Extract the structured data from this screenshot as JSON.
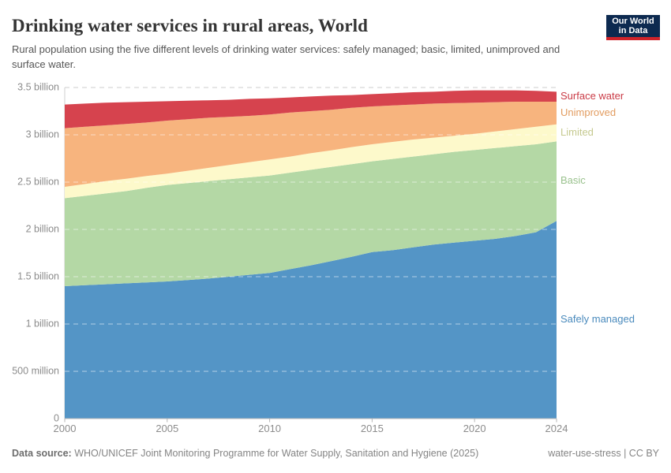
{
  "header": {
    "title": "Drinking water services in rural areas, World",
    "subtitle": "Rural population using the five different levels of drinking water services: safely managed; basic, limited, unimproved and surface water.",
    "logo": {
      "line1": "Our World",
      "line2": "in Data",
      "bg_color": "#0d2a50",
      "bar_color": "#d0232a"
    }
  },
  "chart_data": {
    "type": "area",
    "stacked": true,
    "title": "Drinking water services in rural areas, World",
    "xlabel": "",
    "ylabel": "Rural population",
    "unit": "billion people",
    "grid": "dashed",
    "legend_position": "right",
    "x": [
      2000,
      2001,
      2002,
      2003,
      2004,
      2005,
      2006,
      2007,
      2008,
      2009,
      2010,
      2011,
      2012,
      2013,
      2014,
      2015,
      2016,
      2017,
      2018,
      2019,
      2020,
      2021,
      2022,
      2023,
      2024
    ],
    "series": [
      {
        "name": "Safely managed",
        "color": "#5495c6",
        "label_color": "#4b8bbd",
        "values": [
          1.4,
          1.41,
          1.42,
          1.43,
          1.44,
          1.45,
          1.465,
          1.48,
          1.5,
          1.52,
          1.54,
          1.58,
          1.62,
          1.665,
          1.71,
          1.76,
          1.78,
          1.81,
          1.84,
          1.86,
          1.88,
          1.9,
          1.93,
          1.97,
          2.09
        ]
      },
      {
        "name": "Basic",
        "color": "#b4d8a5",
        "label_color": "#9ac28e",
        "values": [
          0.93,
          0.945,
          0.96,
          0.975,
          1.0,
          1.02,
          1.025,
          1.03,
          1.03,
          1.03,
          1.03,
          1.02,
          1.01,
          0.995,
          0.98,
          0.96,
          0.965,
          0.96,
          0.955,
          0.96,
          0.96,
          0.96,
          0.95,
          0.93,
          0.84
        ]
      },
      {
        "name": "Limited",
        "color": "#fdf9cb",
        "label_color": "#c5c98f",
        "values": [
          0.12,
          0.125,
          0.13,
          0.13,
          0.125,
          0.12,
          0.13,
          0.14,
          0.15,
          0.16,
          0.17,
          0.17,
          0.175,
          0.175,
          0.18,
          0.18,
          0.18,
          0.18,
          0.175,
          0.17,
          0.17,
          0.175,
          0.18,
          0.185,
          0.18
        ]
      },
      {
        "name": "Unimproved",
        "color": "#f7b47e",
        "label_color": "#e29c60",
        "values": [
          0.62,
          0.605,
          0.59,
          0.58,
          0.565,
          0.56,
          0.545,
          0.53,
          0.51,
          0.49,
          0.475,
          0.465,
          0.445,
          0.43,
          0.415,
          0.4,
          0.385,
          0.37,
          0.36,
          0.345,
          0.33,
          0.31,
          0.29,
          0.265,
          0.24
        ]
      },
      {
        "name": "Surface water",
        "color": "#d6434e",
        "label_color": "#ca3b46",
        "values": [
          0.25,
          0.245,
          0.24,
          0.23,
          0.22,
          0.205,
          0.195,
          0.185,
          0.18,
          0.18,
          0.17,
          0.16,
          0.155,
          0.15,
          0.135,
          0.13,
          0.13,
          0.13,
          0.125,
          0.13,
          0.13,
          0.125,
          0.12,
          0.115,
          0.105
        ]
      }
    ],
    "ylim": [
      0,
      3.5
    ],
    "yticks": [
      {
        "v": 0,
        "label": "0"
      },
      {
        "v": 0.5,
        "label": "500 million"
      },
      {
        "v": 1,
        "label": "1 billion"
      },
      {
        "v": 1.5,
        "label": "1.5 billion"
      },
      {
        "v": 2,
        "label": "2 billion"
      },
      {
        "v": 2.5,
        "label": "2.5 billion"
      },
      {
        "v": 3,
        "label": "3 billion"
      },
      {
        "v": 3.5,
        "label": "3.5 billion"
      }
    ],
    "xticks": [
      {
        "v": 2000,
        "label": "2000"
      },
      {
        "v": 2005,
        "label": "2005"
      },
      {
        "v": 2010,
        "label": "2010"
      },
      {
        "v": 2015,
        "label": "2015"
      },
      {
        "v": 2020,
        "label": "2020"
      },
      {
        "v": 2024,
        "label": "2024"
      }
    ]
  },
  "footer": {
    "source_label": "Data source:",
    "source_text": "WHO/UNICEF Joint Monitoring Programme for Water Supply, Sanitation and Hygiene (2025)",
    "note_right": "water-use-stress | CC BY"
  }
}
